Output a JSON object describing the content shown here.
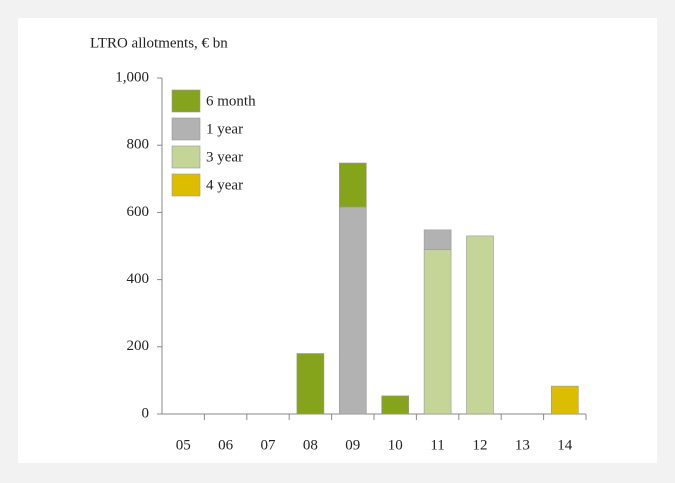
{
  "chart_data": {
    "type": "stacked_bar",
    "title": "LTRO allotments, € bn",
    "categories": [
      "05",
      "06",
      "07",
      "08",
      "09",
      "10",
      "11",
      "12",
      "13",
      "14"
    ],
    "series": [
      {
        "name": "6 month",
        "color": "#86a31c",
        "values": [
          null,
          null,
          null,
          180,
          131,
          54,
          null,
          null,
          null,
          null
        ]
      },
      {
        "name": "1 year",
        "color": "#b2b2b2",
        "values": [
          null,
          null,
          null,
          null,
          616,
          null,
          59,
          null,
          null,
          null
        ]
      },
      {
        "name": "3 year",
        "color": "#c5d497",
        "values": [
          null,
          null,
          null,
          null,
          null,
          null,
          489,
          530,
          null,
          null
        ]
      },
      {
        "name": "4 year",
        "color": "#dcbd00",
        "values": [
          null,
          null,
          null,
          null,
          null,
          null,
          null,
          null,
          null,
          83
        ]
      }
    ],
    "ylim": [
      0,
      1000
    ],
    "yticks": [
      0,
      200,
      400,
      600,
      800,
      {
        "value": 1000,
        "label": "1,000"
      }
    ],
    "grid": false,
    "legend": "top-left"
  }
}
